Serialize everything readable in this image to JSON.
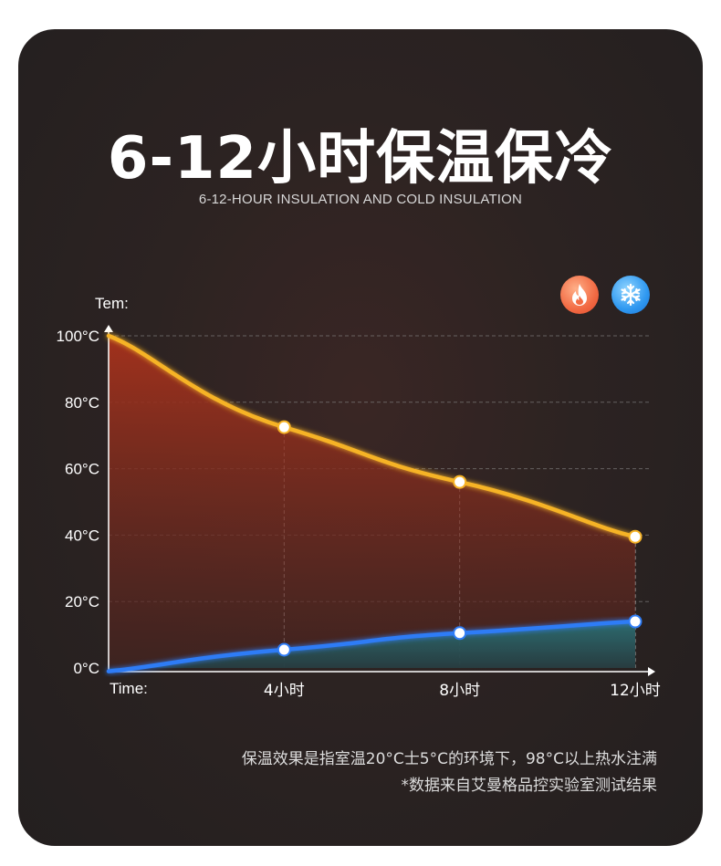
{
  "header": {
    "title": "6-12小时保温保冷",
    "subtitle": "6-12-HOUR INSULATION AND COLD INSULATION"
  },
  "icons": [
    {
      "name": "fire-icon",
      "color": "#f26a43"
    },
    {
      "name": "snowflake-icon",
      "color": "#2f98f0"
    }
  ],
  "chart_data": {
    "type": "line",
    "ylabel": "Tem:",
    "xlabel": "Time:",
    "x": [
      0,
      4,
      8,
      12
    ],
    "x_tick_labels": [
      "4小时",
      "8小时",
      "12小时"
    ],
    "x_tick_values": [
      4,
      8,
      12
    ],
    "y_ticks": [
      0,
      20,
      40,
      60,
      80,
      100
    ],
    "y_tick_labels": [
      "0°C",
      "20°C",
      "40°C",
      "60°C",
      "80°C",
      "100°C"
    ],
    "ylim": [
      0,
      100
    ],
    "xlim": [
      0,
      12
    ],
    "grid": true,
    "series": [
      {
        "key": "hot",
        "values": [
          100,
          72.5,
          56,
          39.5
        ],
        "color": "#f6b325",
        "fill_top": "#a8321c",
        "fill_bottom": "#4a2420"
      },
      {
        "key": "cold",
        "values": [
          -1,
          5.5,
          10.5,
          14
        ],
        "color": "#2e7cf6",
        "fill_top": "#2b6e73",
        "fill_bottom": "#263a3e"
      }
    ]
  },
  "notes": {
    "line1": "保温效果是指室温20°C士5°C的环境下，98°C以上热水注满",
    "line2": "*数据来自艾曼格品控实验室测试结果"
  }
}
